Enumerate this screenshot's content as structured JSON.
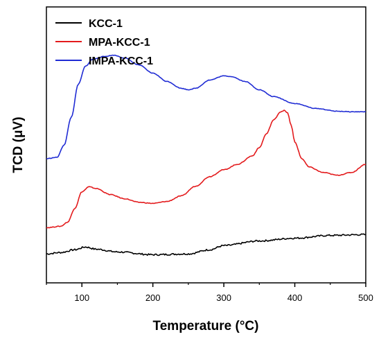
{
  "chart_data": {
    "type": "line",
    "xlabel": "Temperature (°C)",
    "ylabel": "TCD (μV)",
    "xlim": [
      50,
      500
    ],
    "ylim": [
      0,
      10
    ],
    "x_ticks": [
      "100",
      "200",
      "300",
      "400",
      "500"
    ],
    "y_ticks_shown": false,
    "legend_position": "top-left",
    "series": [
      {
        "name": "KCC-1",
        "color": "#000000",
        "x": [
          50,
          70,
          90,
          105,
          120,
          150,
          200,
          250,
          280,
          300,
          350,
          400,
          450,
          500
        ],
        "y": [
          1.05,
          1.1,
          1.2,
          1.3,
          1.22,
          1.12,
          1.02,
          1.05,
          1.2,
          1.35,
          1.52,
          1.62,
          1.72,
          1.75
        ]
      },
      {
        "name": "MPA-KCC-1",
        "color": "#e31a1c",
        "x": [
          50,
          70,
          80,
          90,
          100,
          110,
          120,
          140,
          160,
          180,
          200,
          220,
          240,
          260,
          280,
          300,
          320,
          340,
          350,
          360,
          370,
          380,
          385,
          390,
          395,
          400,
          410,
          420,
          440,
          460,
          480,
          500
        ],
        "y": [
          2.0,
          2.05,
          2.2,
          2.7,
          3.3,
          3.48,
          3.42,
          3.2,
          3.05,
          2.92,
          2.88,
          2.95,
          3.15,
          3.5,
          3.85,
          4.1,
          4.3,
          4.6,
          4.9,
          5.4,
          5.9,
          6.2,
          6.25,
          6.15,
          5.7,
          5.1,
          4.5,
          4.2,
          4.0,
          3.9,
          4.0,
          4.3
        ]
      },
      {
        "name": "IMPA-KCC-1",
        "color": "#1f2bd4",
        "x": [
          50,
          65,
          75,
          85,
          95,
          105,
          115,
          130,
          145,
          160,
          180,
          200,
          220,
          240,
          250,
          260,
          280,
          300,
          310,
          330,
          350,
          370,
          400,
          430,
          460,
          480,
          500
        ],
        "y": [
          4.5,
          4.55,
          5.0,
          6.0,
          7.2,
          7.85,
          8.1,
          8.2,
          8.25,
          8.15,
          7.9,
          7.6,
          7.3,
          7.05,
          7.0,
          7.05,
          7.35,
          7.5,
          7.48,
          7.3,
          7.0,
          6.75,
          6.5,
          6.32,
          6.22,
          6.2,
          6.2
        ]
      }
    ]
  }
}
